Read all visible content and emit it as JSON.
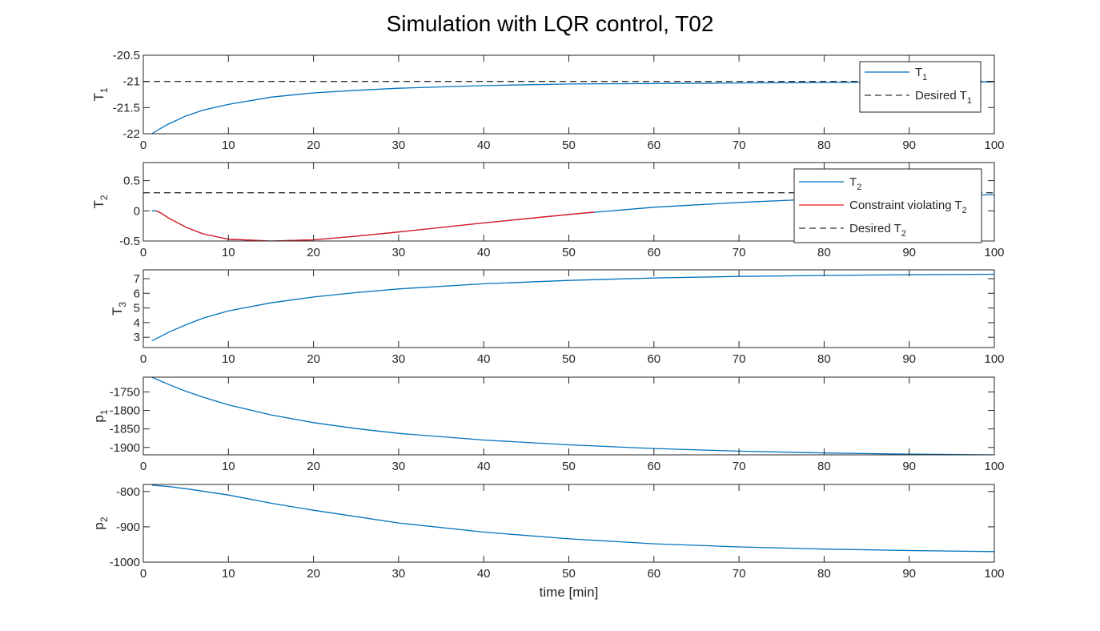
{
  "title": "Simulation with LQR control, T02",
  "colors": {
    "series": "#0072BD",
    "violation": "#E8141A",
    "desired": "#333333",
    "axis": "#262626"
  },
  "chart_data": [
    {
      "type": "line",
      "ylabel_main": "T",
      "ylabel_sub": "1",
      "xlim": [
        0,
        100
      ],
      "ylim": [
        -22,
        -20.5
      ],
      "xticks": [
        0,
        10,
        20,
        30,
        40,
        50,
        60,
        70,
        80,
        90,
        100
      ],
      "yticks": [
        -22,
        -21.5,
        -21,
        -20.5
      ],
      "ytick_labels": [
        "-22",
        "-21.5",
        "-21",
        "-20.5"
      ],
      "legend_position": "top-right",
      "series": [
        {
          "name_main": "T",
          "name_sub": "1",
          "style": "solid",
          "color": "#0072BD",
          "x": [
            1,
            2,
            3,
            5,
            7,
            10,
            15,
            20,
            25,
            30,
            40,
            50,
            60,
            70,
            80,
            90,
            100
          ],
          "y": [
            -22,
            -21.9,
            -21.81,
            -21.66,
            -21.55,
            -21.44,
            -21.3,
            -21.22,
            -21.17,
            -21.13,
            -21.08,
            -21.05,
            -21.04,
            -21.03,
            -21.02,
            -21.01,
            -21.01
          ]
        },
        {
          "name_main": "Desired T",
          "name_sub": "1",
          "style": "dashed",
          "color": "#333333",
          "x": [
            0,
            100
          ],
          "y": [
            -21,
            -21
          ]
        }
      ]
    },
    {
      "type": "line",
      "ylabel_main": "T",
      "ylabel_sub": "2",
      "xlim": [
        0,
        100
      ],
      "ylim": [
        -0.5,
        0.8
      ],
      "xticks": [
        0,
        10,
        20,
        30,
        40,
        50,
        60,
        70,
        80,
        90,
        100
      ],
      "yticks": [
        -0.5,
        0,
        0.5
      ],
      "ytick_labels": [
        "-0.5",
        "0",
        "0.5"
      ],
      "legend_position": "top-right",
      "series": [
        {
          "name_main": "T",
          "name_sub": "2",
          "style": "solid",
          "color": "#0072BD",
          "x": [
            1,
            1.5,
            2,
            3,
            5,
            7,
            10,
            15,
            20,
            25,
            30,
            40,
            50,
            60,
            70,
            80,
            90,
            100
          ],
          "y": [
            0,
            0,
            -0.03,
            -0.12,
            -0.27,
            -0.38,
            -0.47,
            -0.5,
            -0.48,
            -0.42,
            -0.35,
            -0.2,
            -0.06,
            0.06,
            0.14,
            0.2,
            0.24,
            0.27
          ]
        },
        {
          "name_main": "Constraint violating T",
          "name_sub": "2",
          "style": "solid",
          "color": "#E8141A",
          "x": [
            1.5,
            2,
            3,
            5,
            7,
            10,
            15,
            20,
            25,
            30,
            40,
            50,
            53
          ],
          "y": [
            0,
            -0.03,
            -0.12,
            -0.27,
            -0.38,
            -0.47,
            -0.5,
            -0.48,
            -0.42,
            -0.35,
            -0.2,
            -0.06,
            -0.02
          ]
        },
        {
          "name_main": "Desired T",
          "name_sub": "2",
          "style": "dashed",
          "color": "#333333",
          "x": [
            0,
            100
          ],
          "y": [
            0.3,
            0.3
          ]
        }
      ]
    },
    {
      "type": "line",
      "ylabel_main": "T",
      "ylabel_sub": "3",
      "xlim": [
        0,
        100
      ],
      "ylim": [
        2.3,
        7.6
      ],
      "xticks": [
        0,
        10,
        20,
        30,
        40,
        50,
        60,
        70,
        80,
        90,
        100
      ],
      "yticks": [
        3,
        4,
        5,
        6,
        7
      ],
      "ytick_labels": [
        "3",
        "4",
        "5",
        "6",
        "7"
      ],
      "series": [
        {
          "style": "solid",
          "color": "#0072BD",
          "x": [
            1,
            2,
            3,
            5,
            7,
            10,
            15,
            20,
            25,
            30,
            40,
            50,
            60,
            70,
            80,
            90,
            100
          ],
          "y": [
            2.75,
            3.05,
            3.35,
            3.85,
            4.3,
            4.8,
            5.35,
            5.75,
            6.05,
            6.3,
            6.65,
            6.88,
            7.05,
            7.15,
            7.22,
            7.27,
            7.3
          ]
        }
      ]
    },
    {
      "type": "line",
      "ylabel_main": "p",
      "ylabel_sub": "1",
      "xlim": [
        0,
        100
      ],
      "ylim": [
        -1920,
        -1710
      ],
      "xticks": [
        0,
        10,
        20,
        30,
        40,
        50,
        60,
        70,
        80,
        90,
        100
      ],
      "yticks": [
        -1900,
        -1850,
        -1800,
        -1750
      ],
      "ytick_labels": [
        "-1900",
        "-1850",
        "-1800",
        "-1750"
      ],
      "series": [
        {
          "style": "solid",
          "color": "#0072BD",
          "x": [
            1,
            2,
            3,
            5,
            7,
            10,
            15,
            20,
            25,
            30,
            40,
            50,
            60,
            70,
            80,
            90,
            100
          ],
          "y": [
            -1710,
            -1720,
            -1730,
            -1748,
            -1764,
            -1785,
            -1812,
            -1833,
            -1849,
            -1862,
            -1880,
            -1893,
            -1903,
            -1910,
            -1915,
            -1918,
            -1920
          ]
        }
      ]
    },
    {
      "type": "line",
      "ylabel_main": "p",
      "ylabel_sub": "2",
      "xlim": [
        0,
        100
      ],
      "ylim": [
        -1000,
        -780
      ],
      "xticks": [
        0,
        10,
        20,
        30,
        40,
        50,
        60,
        70,
        80,
        90,
        100
      ],
      "yticks": [
        -1000,
        -900,
        -800
      ],
      "ytick_labels": [
        "-1000",
        "-900",
        "-800"
      ],
      "xlabel": "time [min]",
      "series": [
        {
          "style": "solid",
          "color": "#0072BD",
          "x": [
            1,
            3,
            5,
            10,
            15,
            20,
            30,
            40,
            50,
            60,
            70,
            80,
            90,
            100
          ],
          "y": [
            -782,
            -786,
            -792,
            -810,
            -833,
            -853,
            -889,
            -915,
            -934,
            -948,
            -957,
            -963,
            -967,
            -970
          ]
        }
      ]
    }
  ]
}
